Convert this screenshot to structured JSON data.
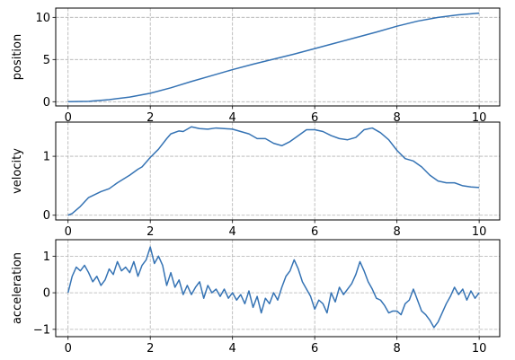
{
  "chart_data": [
    {
      "type": "line",
      "ylabel": "position",
      "xlim": [
        -0.3,
        10.5
      ],
      "ylim": [
        -0.5,
        11.1
      ],
      "xticks": [
        0,
        2,
        4,
        6,
        8,
        10
      ],
      "yticks": [
        0,
        5,
        10
      ],
      "show_xtick_labels": true,
      "grid": true,
      "color": "#3573b4",
      "series": [
        {
          "x": [
            0,
            0.5,
            1,
            1.5,
            2,
            2.5,
            3,
            3.5,
            4,
            4.5,
            5,
            5.5,
            6,
            6.5,
            7,
            7.5,
            8,
            8.5,
            9,
            9.5,
            10
          ],
          "values": [
            0,
            0.05,
            0.25,
            0.55,
            1.0,
            1.65,
            2.4,
            3.1,
            3.8,
            4.45,
            5.05,
            5.65,
            6.3,
            6.95,
            7.6,
            8.25,
            8.95,
            9.55,
            10.0,
            10.3,
            10.5
          ]
        }
      ]
    },
    {
      "type": "line",
      "ylabel": "velocity",
      "xlim": [
        -0.3,
        10.5
      ],
      "ylim": [
        -0.08,
        1.58
      ],
      "xticks": [
        0,
        2,
        4,
        6,
        8,
        10
      ],
      "yticks": [
        0,
        1
      ],
      "show_xtick_labels": true,
      "grid": true,
      "color": "#3573b4",
      "series": [
        {
          "x": [
            0,
            0.1,
            0.3,
            0.5,
            0.8,
            1.0,
            1.2,
            1.5,
            1.7,
            1.8,
            2.0,
            2.2,
            2.4,
            2.5,
            2.7,
            2.8,
            3.0,
            3.2,
            3.4,
            3.6,
            3.8,
            4.0,
            4.2,
            4.4,
            4.6,
            4.8,
            5.0,
            5.2,
            5.4,
            5.6,
            5.8,
            6.0,
            6.2,
            6.4,
            6.6,
            6.8,
            7.0,
            7.2,
            7.4,
            7.6,
            7.8,
            8.0,
            8.2,
            8.4,
            8.6,
            8.8,
            9.0,
            9.2,
            9.4,
            9.6,
            9.8,
            10.0
          ],
          "values": [
            0,
            0.03,
            0.15,
            0.3,
            0.4,
            0.45,
            0.55,
            0.68,
            0.78,
            0.82,
            0.98,
            1.12,
            1.3,
            1.38,
            1.43,
            1.42,
            1.5,
            1.47,
            1.46,
            1.48,
            1.47,
            1.46,
            1.42,
            1.38,
            1.3,
            1.3,
            1.22,
            1.18,
            1.25,
            1.35,
            1.45,
            1.45,
            1.42,
            1.35,
            1.3,
            1.28,
            1.32,
            1.45,
            1.48,
            1.4,
            1.28,
            1.1,
            0.96,
            0.92,
            0.82,
            0.68,
            0.58,
            0.55,
            0.55,
            0.5,
            0.48,
            0.47
          ]
        }
      ]
    },
    {
      "type": "line",
      "ylabel": "acceleration",
      "xlim": [
        -0.3,
        10.5
      ],
      "ylim": [
        -1.2,
        1.45
      ],
      "xticks": [
        0,
        2,
        4,
        6,
        8,
        10
      ],
      "yticks": [
        -1,
        0,
        1
      ],
      "show_xtick_labels": true,
      "grid": true,
      "color": "#3573b4",
      "series": [
        {
          "x": [
            0,
            0.1,
            0.2,
            0.3,
            0.4,
            0.5,
            0.6,
            0.7,
            0.8,
            0.9,
            1.0,
            1.1,
            1.2,
            1.3,
            1.4,
            1.5,
            1.6,
            1.7,
            1.8,
            1.9,
            2.0,
            2.1,
            2.2,
            2.3,
            2.4,
            2.5,
            2.6,
            2.7,
            2.8,
            2.9,
            3.0,
            3.1,
            3.2,
            3.3,
            3.4,
            3.5,
            3.6,
            3.7,
            3.8,
            3.9,
            4.0,
            4.1,
            4.2,
            4.3,
            4.4,
            4.5,
            4.6,
            4.7,
            4.8,
            4.9,
            5.0,
            5.1,
            5.2,
            5.3,
            5.4,
            5.5,
            5.6,
            5.7,
            5.8,
            5.9,
            6.0,
            6.1,
            6.2,
            6.3,
            6.4,
            6.5,
            6.6,
            6.7,
            6.8,
            6.9,
            7.0,
            7.1,
            7.2,
            7.3,
            7.4,
            7.5,
            7.6,
            7.7,
            7.8,
            7.9,
            8.0,
            8.1,
            8.2,
            8.3,
            8.4,
            8.5,
            8.6,
            8.7,
            8.8,
            8.9,
            9.0,
            9.1,
            9.2,
            9.3,
            9.4,
            9.5,
            9.6,
            9.7,
            9.8,
            9.9,
            10.0
          ],
          "values": [
            0.0,
            0.45,
            0.7,
            0.6,
            0.75,
            0.55,
            0.3,
            0.45,
            0.2,
            0.35,
            0.65,
            0.5,
            0.85,
            0.6,
            0.7,
            0.55,
            0.85,
            0.45,
            0.75,
            0.9,
            1.25,
            0.8,
            1.0,
            0.75,
            0.2,
            0.55,
            0.15,
            0.35,
            -0.05,
            0.2,
            -0.05,
            0.15,
            0.3,
            -0.15,
            0.2,
            0.0,
            0.1,
            -0.1,
            0.1,
            -0.15,
            0.0,
            -0.2,
            -0.05,
            -0.3,
            0.05,
            -0.4,
            -0.1,
            -0.55,
            -0.15,
            -0.3,
            0.0,
            -0.2,
            0.15,
            0.45,
            0.6,
            0.9,
            0.65,
            0.3,
            0.1,
            -0.1,
            -0.45,
            -0.2,
            -0.3,
            -0.55,
            0.0,
            -0.25,
            0.15,
            -0.05,
            0.1,
            0.25,
            0.5,
            0.85,
            0.6,
            0.3,
            0.1,
            -0.15,
            -0.2,
            -0.35,
            -0.55,
            -0.5,
            -0.5,
            -0.6,
            -0.3,
            -0.2,
            0.1,
            -0.2,
            -0.5,
            -0.6,
            -0.75,
            -0.95,
            -0.8,
            -0.55,
            -0.3,
            -0.1,
            0.15,
            -0.05,
            0.1,
            -0.2,
            0.05,
            -0.15,
            0.0
          ]
        }
      ]
    }
  ]
}
